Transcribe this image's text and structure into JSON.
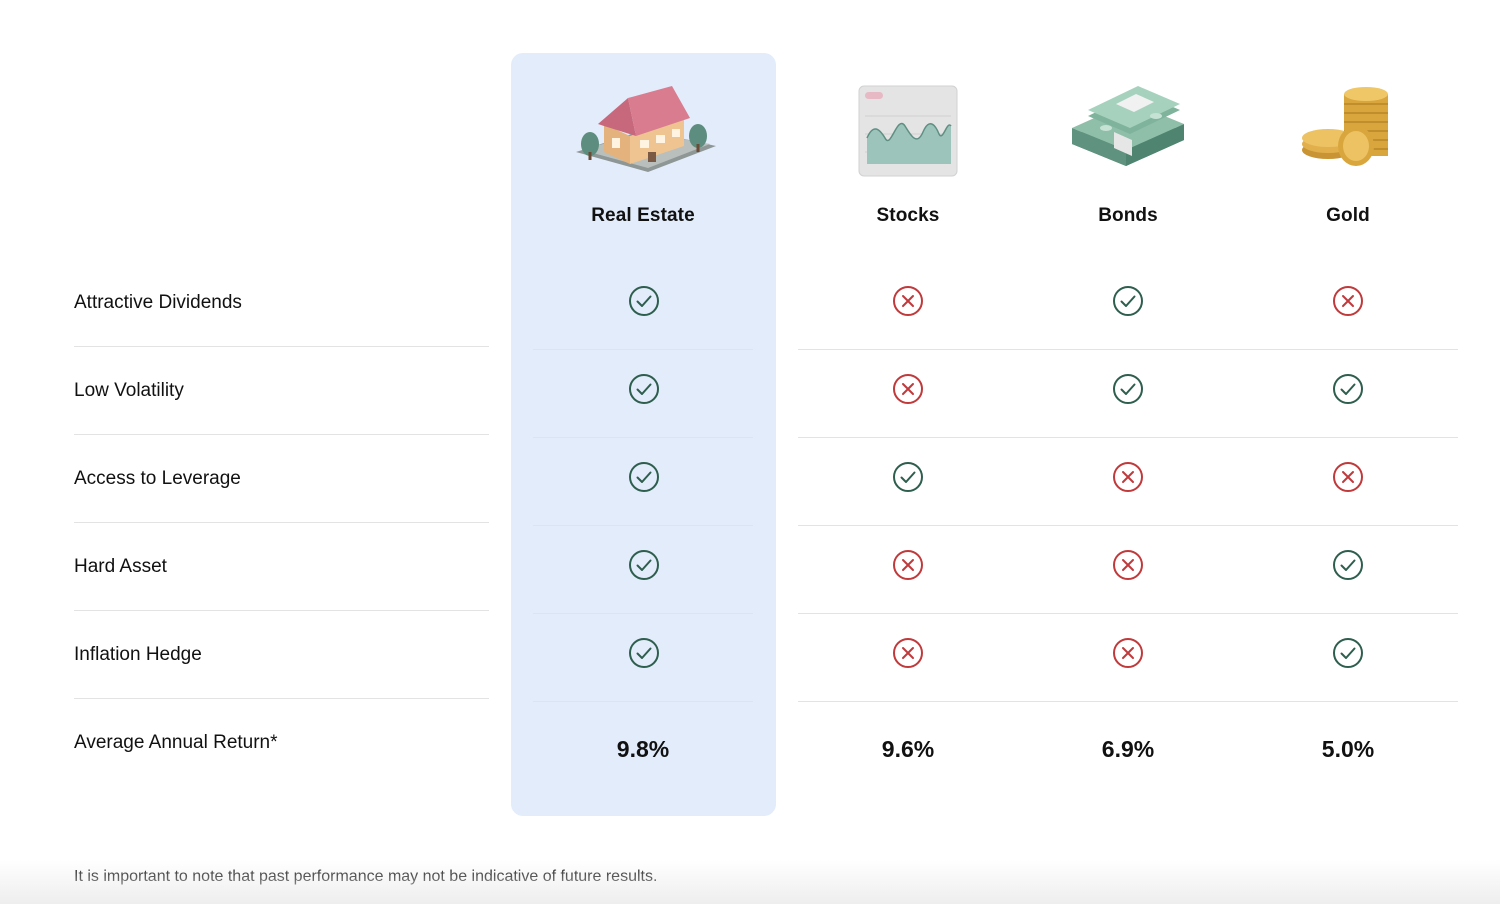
{
  "columns": [
    {
      "label": "Real Estate",
      "icon": "house-icon",
      "highlight": true,
      "return": "9.8%"
    },
    {
      "label": "Stocks",
      "icon": "stock-chart-icon",
      "highlight": false,
      "return": "9.6%"
    },
    {
      "label": "Bonds",
      "icon": "cash-stack-icon",
      "highlight": false,
      "return": "6.9%"
    },
    {
      "label": "Gold",
      "icon": "gold-coins-icon",
      "highlight": false,
      "return": "5.0%"
    }
  ],
  "rows": [
    {
      "label": "Attractive Dividends",
      "values": [
        "check",
        "cross",
        "check",
        "cross"
      ]
    },
    {
      "label": "Low Volatility",
      "values": [
        "check",
        "cross",
        "check",
        "check"
      ]
    },
    {
      "label": "Access to Leverage",
      "values": [
        "check",
        "check",
        "cross",
        "cross"
      ]
    },
    {
      "label": "Hard Asset",
      "values": [
        "check",
        "cross",
        "cross",
        "check"
      ]
    },
    {
      "label": "Inflation Hedge",
      "values": [
        "check",
        "cross",
        "cross",
        "check"
      ]
    }
  ],
  "return_row": {
    "label": "Average Annual Return*"
  },
  "footnote": "It is important to note that past performance may not be indicative of future results.",
  "colors": {
    "highlight_bg": "#e2ecfa",
    "check": "#2e5e4e",
    "cross": "#c0393b",
    "divider": "#e3e3e3"
  }
}
